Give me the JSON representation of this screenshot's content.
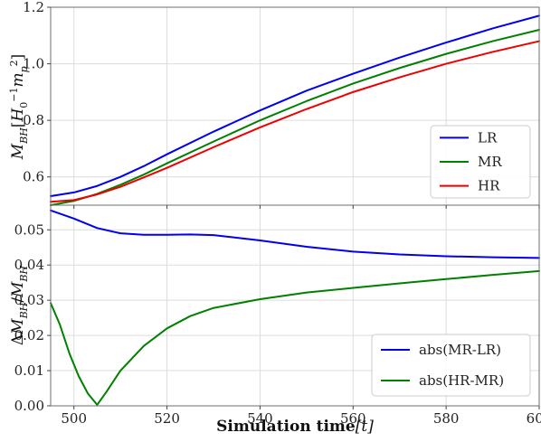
{
  "chart_data": [
    {
      "type": "line",
      "title": "",
      "ylabel": "M_BH[H_0^{-1} m_p^2]",
      "ylabel_parts": {
        "main": "M",
        "main_sub": "BH",
        "open": "[",
        "h": "H",
        "h_sub": "0",
        "h_sup": "−1",
        "m": "m",
        "m_sub": "p",
        "m_sup": "2",
        "close": "]"
      },
      "xlim": [
        495,
        600
      ],
      "ylim": [
        0.5,
        1.2
      ],
      "xticks": [
        500,
        520,
        540,
        560,
        580,
        600
      ],
      "yticks": [
        0.6,
        0.8,
        1.0,
        1.2
      ],
      "ytick_labels": [
        "0.6",
        "0.8",
        "1.0",
        "1.2"
      ],
      "grid": true,
      "legend_position": "lower-right",
      "series": [
        {
          "name": "LR",
          "color": "#0000ee",
          "x": [
            495,
            500,
            505,
            510,
            515,
            520,
            530,
            540,
            550,
            560,
            570,
            580,
            590,
            600
          ],
          "y": [
            0.532,
            0.545,
            0.568,
            0.6,
            0.638,
            0.68,
            0.76,
            0.835,
            0.905,
            0.965,
            1.022,
            1.075,
            1.125,
            1.17
          ]
        },
        {
          "name": "MR",
          "color": "#008000",
          "x": [
            495,
            500,
            505,
            510,
            515,
            520,
            530,
            540,
            550,
            560,
            570,
            580,
            590,
            600
          ],
          "y": [
            0.5,
            0.515,
            0.54,
            0.572,
            0.608,
            0.648,
            0.725,
            0.8,
            0.868,
            0.93,
            0.985,
            1.035,
            1.08,
            1.12
          ]
        },
        {
          "name": "HR",
          "color": "#ee0000",
          "x": [
            495,
            500,
            505,
            510,
            515,
            520,
            530,
            540,
            550,
            560,
            570,
            580,
            590,
            600
          ],
          "y": [
            0.512,
            0.518,
            0.538,
            0.565,
            0.598,
            0.632,
            0.705,
            0.775,
            0.84,
            0.9,
            0.952,
            1.0,
            1.042,
            1.08
          ]
        }
      ]
    },
    {
      "type": "line",
      "title": "",
      "xlabel_bold": "Simulation time",
      "xlabel_rest": "[t]",
      "ylabel": "ΔM_BH/M_BH",
      "ylabel_parts": {
        "delta": "Δ",
        "main": "M",
        "main_sub": "BH",
        "slash": "/",
        "den": "M",
        "den_sub": "BH"
      },
      "xlim": [
        495,
        600
      ],
      "ylim": [
        0.0,
        0.057
      ],
      "xticks": [
        500,
        520,
        540,
        560,
        580,
        600
      ],
      "yticks": [
        0.0,
        0.01,
        0.02,
        0.03,
        0.04,
        0.05
      ],
      "ytick_labels": [
        "0.00",
        "0.01",
        "0.02",
        "0.03",
        "0.04",
        "0.05"
      ],
      "grid": true,
      "legend_position": "lower-right",
      "series": [
        {
          "name": "abs(MR-LR)",
          "color": "#0000ee",
          "x": [
            495,
            500,
            505,
            510,
            515,
            520,
            525,
            530,
            540,
            550,
            560,
            570,
            580,
            590,
            600
          ],
          "y": [
            0.0555,
            0.0532,
            0.0505,
            0.049,
            0.0486,
            0.0486,
            0.0487,
            0.0485,
            0.047,
            0.0452,
            0.0438,
            0.043,
            0.0425,
            0.0422,
            0.042
          ]
        },
        {
          "name": "abs(HR-MR)",
          "color": "#008000",
          "x": [
            495,
            497,
            499,
            501,
            503,
            505,
            507,
            510,
            515,
            520,
            525,
            530,
            540,
            550,
            560,
            570,
            580,
            590,
            600
          ],
          "y": [
            0.0292,
            0.023,
            0.015,
            0.0085,
            0.0035,
            0.0003,
            0.004,
            0.01,
            0.017,
            0.022,
            0.0255,
            0.0278,
            0.0303,
            0.0322,
            0.0335,
            0.0348,
            0.036,
            0.0372,
            0.0383
          ]
        }
      ]
    }
  ]
}
